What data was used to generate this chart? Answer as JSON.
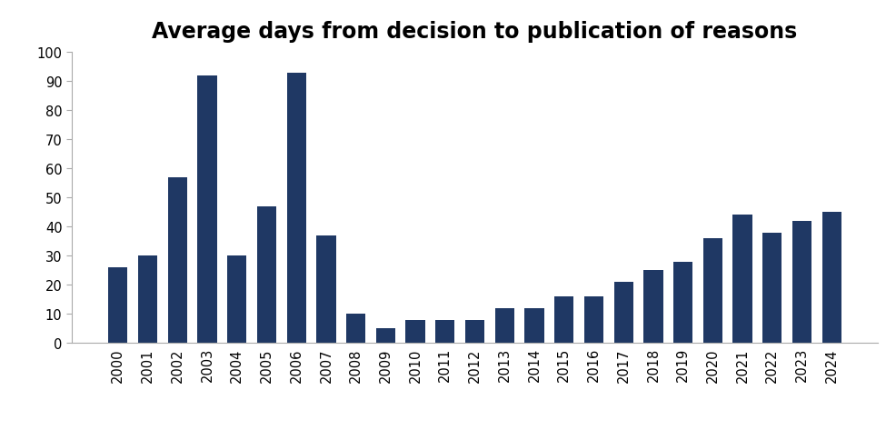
{
  "title": "Average days from decision to publication of reasons",
  "years": [
    2000,
    2001,
    2002,
    2003,
    2004,
    2005,
    2006,
    2007,
    2008,
    2009,
    2010,
    2011,
    2012,
    2013,
    2014,
    2015,
    2016,
    2017,
    2018,
    2019,
    2020,
    2021,
    2022,
    2023,
    2024
  ],
  "values": [
    26,
    30,
    57,
    92,
    30,
    47,
    93,
    37,
    10,
    5,
    8,
    8,
    8,
    12,
    12,
    16,
    16,
    21,
    25,
    28,
    36,
    44,
    38,
    42,
    45
  ],
  "bar_color": "#1F3864",
  "ylim": [
    0,
    100
  ],
  "yticks": [
    0,
    10,
    20,
    30,
    40,
    50,
    60,
    70,
    80,
    90,
    100
  ],
  "title_fontsize": 17,
  "title_fontweight": "bold",
  "background_color": "#ffffff",
  "tick_fontsize": 10.5,
  "spine_color": "#aaaaaa"
}
